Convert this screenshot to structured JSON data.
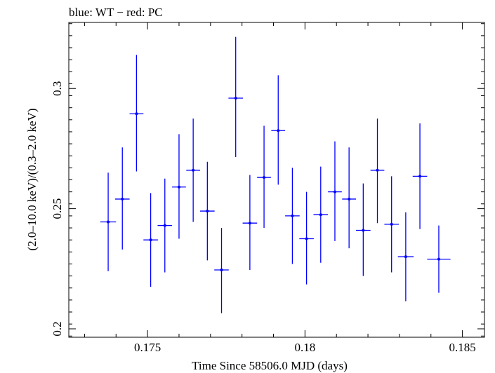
{
  "chart_data": {
    "type": "scatter",
    "title": "blue: WT − red: PC",
    "xlabel": "Time Since 58506.0 MJD (days)",
    "ylabel": "(2.0–10.0 keV)/(0.3–2.0 keV)",
    "xlim": [
      0.1725,
      0.1857
    ],
    "ylim": [
      0.1965,
      0.3275
    ],
    "x_ticks": [
      {
        "value": 0.175,
        "label": "0.175"
      },
      {
        "value": 0.18,
        "label": "0.18"
      },
      {
        "value": 0.185,
        "label": "0.185"
      }
    ],
    "y_ticks": [
      {
        "value": 0.2,
        "label": "0.2"
      },
      {
        "value": 0.25,
        "label": "0.25"
      },
      {
        "value": 0.3,
        "label": "0.3"
      }
    ],
    "grid": false,
    "series": [
      {
        "color": "#0000ff",
        "points": [
          {
            "x": 0.17375,
            "xerr": 0.00025,
            "y": 0.2445,
            "ylo": 0.224,
            "yhi": 0.265
          },
          {
            "x": 0.1742,
            "xerr": 0.00023,
            "y": 0.254,
            "ylo": 0.233,
            "yhi": 0.2755
          },
          {
            "x": 0.17465,
            "xerr": 0.00022,
            "y": 0.2895,
            "ylo": 0.2655,
            "yhi": 0.314
          },
          {
            "x": 0.1751,
            "xerr": 0.00023,
            "y": 0.237,
            "ylo": 0.2175,
            "yhi": 0.2565
          },
          {
            "x": 0.17555,
            "xerr": 0.00023,
            "y": 0.243,
            "ylo": 0.2235,
            "yhi": 0.2625
          },
          {
            "x": 0.176,
            "xerr": 0.00022,
            "y": 0.259,
            "ylo": 0.2375,
            "yhi": 0.281
          },
          {
            "x": 0.17645,
            "xerr": 0.00022,
            "y": 0.266,
            "ylo": 0.2445,
            "yhi": 0.2875
          },
          {
            "x": 0.1769,
            "xerr": 0.00023,
            "y": 0.249,
            "ylo": 0.2285,
            "yhi": 0.2695
          },
          {
            "x": 0.17735,
            "xerr": 0.00023,
            "y": 0.2245,
            "ylo": 0.2065,
            "yhi": 0.242
          },
          {
            "x": 0.1778,
            "xerr": 0.00023,
            "y": 0.296,
            "ylo": 0.2715,
            "yhi": 0.3215
          },
          {
            "x": 0.17825,
            "xerr": 0.00023,
            "y": 0.244,
            "ylo": 0.2245,
            "yhi": 0.264
          },
          {
            "x": 0.1787,
            "xerr": 0.00022,
            "y": 0.263,
            "ylo": 0.242,
            "yhi": 0.2845
          },
          {
            "x": 0.17915,
            "xerr": 0.00022,
            "y": 0.2825,
            "ylo": 0.26,
            "yhi": 0.3055
          },
          {
            "x": 0.1796,
            "xerr": 0.00023,
            "y": 0.247,
            "ylo": 0.227,
            "yhi": 0.267
          },
          {
            "x": 0.18005,
            "xerr": 0.00023,
            "y": 0.2375,
            "ylo": 0.2185,
            "yhi": 0.257
          },
          {
            "x": 0.1805,
            "xerr": 0.00023,
            "y": 0.2475,
            "ylo": 0.2275,
            "yhi": 0.2675
          },
          {
            "x": 0.18095,
            "xerr": 0.00022,
            "y": 0.257,
            "ylo": 0.2365,
            "yhi": 0.278
          },
          {
            "x": 0.1814,
            "xerr": 0.00022,
            "y": 0.254,
            "ylo": 0.2335,
            "yhi": 0.2755
          },
          {
            "x": 0.18185,
            "xerr": 0.00023,
            "y": 0.241,
            "ylo": 0.222,
            "yhi": 0.2605
          },
          {
            "x": 0.1823,
            "xerr": 0.00022,
            "y": 0.266,
            "ylo": 0.244,
            "yhi": 0.2875
          },
          {
            "x": 0.18275,
            "xerr": 0.00023,
            "y": 0.2435,
            "ylo": 0.2235,
            "yhi": 0.2635
          },
          {
            "x": 0.1832,
            "xerr": 0.00025,
            "y": 0.23,
            "ylo": 0.2115,
            "yhi": 0.2485
          },
          {
            "x": 0.18365,
            "xerr": 0.00023,
            "y": 0.2635,
            "ylo": 0.2415,
            "yhi": 0.2855
          },
          {
            "x": 0.18425,
            "xerr": 0.00037,
            "y": 0.229,
            "ylo": 0.215,
            "yhi": 0.243
          }
        ]
      }
    ]
  }
}
